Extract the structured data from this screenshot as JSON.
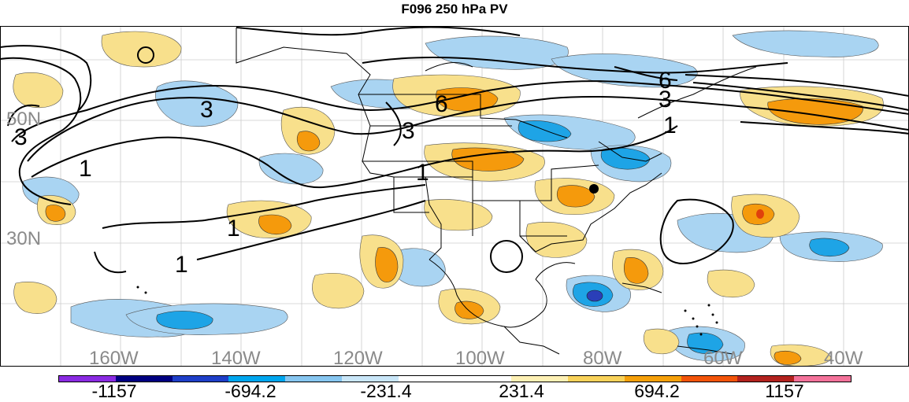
{
  "title": "F096 250 hPa PV",
  "map": {
    "latitude_labels": [
      "50N",
      "30N"
    ],
    "longitude_labels": [
      "160W",
      "140W",
      "120W",
      "100W",
      "80W",
      "60W",
      "40W"
    ],
    "contour_labels": [
      "3",
      "6",
      "3",
      "6",
      "3",
      "3",
      "1",
      "1",
      "1",
      "1",
      "1"
    ],
    "shading_legend": {
      "description_colors": {
        "strong_negative": "#0a1f9c",
        "negative": "#1ea4e6",
        "weak_negative": "#a9d4f2",
        "weak_positive": "#f8e08c",
        "positive": "#f59a0c",
        "strong_positive": "#e0400c"
      }
    },
    "markers": [
      "filled-circle",
      "open-circle",
      "open-circle"
    ]
  },
  "colorbar": {
    "colors": [
      "#8a2be2",
      "#000080",
      "#1e3fc8",
      "#00a6ee",
      "#87c6f0",
      "#c9e6f8",
      "#ffffff",
      "#ffffff",
      "#fdf0b4",
      "#f8d25a",
      "#f5a00a",
      "#f2540a",
      "#b2221e",
      "#f3729a"
    ],
    "labels": [
      "-1157",
      "-694.2",
      "-231.4",
      "231.4",
      "694.2",
      "1157"
    ]
  }
}
